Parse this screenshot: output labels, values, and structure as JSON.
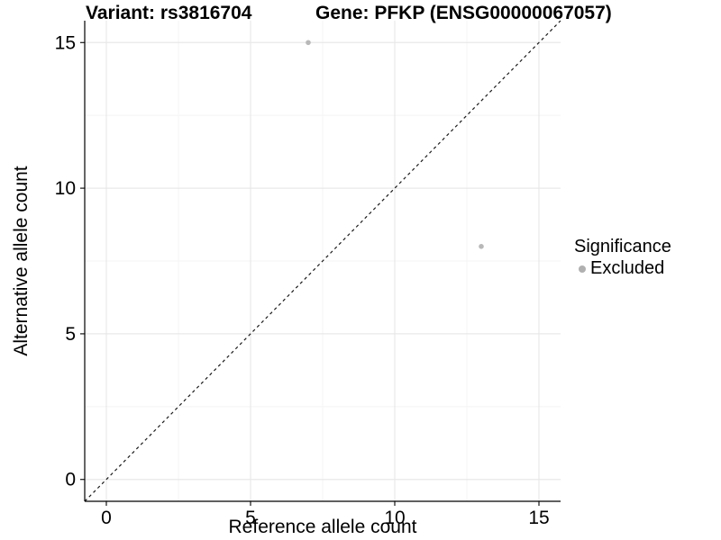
{
  "header": {
    "variant_title": "Variant: rs3816704",
    "gene_title": "Gene: PFKP (ENSG00000067057)"
  },
  "chart_data": {
    "type": "scatter",
    "xlabel": "Reference allele count",
    "ylabel": "Alternative allele count",
    "xlim": [
      -0.75,
      15.75
    ],
    "ylim": [
      -0.75,
      15.75
    ],
    "xticks": [
      0,
      5,
      10,
      15
    ],
    "yticks": [
      0,
      5,
      10,
      15
    ],
    "xminor": [
      2.5,
      7.5,
      12.5
    ],
    "yminor": [
      2.5,
      7.5,
      12.5
    ],
    "grid": "on",
    "identity_line": {
      "slope": 1,
      "intercept": 0,
      "style": "dashed",
      "color": "#1a1a1a"
    },
    "series": [
      {
        "name": "Excluded",
        "color": "#b8b8b8",
        "points": [
          {
            "x": 7,
            "y": 15
          },
          {
            "x": 13,
            "y": 8
          }
        ]
      }
    ],
    "legend": {
      "title": "Significance",
      "position": "right",
      "items": [
        {
          "label": "Excluded",
          "color": "#b0b0b0"
        }
      ]
    }
  },
  "colors": {
    "background": "#ffffff",
    "grid_major": "#e8e8e8",
    "grid_minor": "#f4f4f4",
    "axis": "#000000",
    "text": "#000000"
  }
}
